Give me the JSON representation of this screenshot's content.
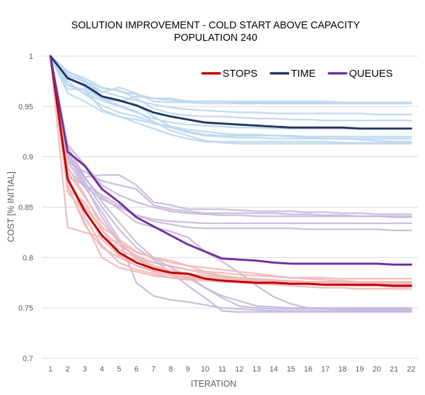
{
  "chart_data": {
    "type": "line",
    "title": "SOLUTION IMPROVEMENT - COLD START ABOVE CAPACITY",
    "subtitle": "POPULATION 240",
    "xlabel": "ITERATION",
    "ylabel": "COST [% INITIAL]",
    "x": [
      1,
      2,
      3,
      4,
      5,
      6,
      7,
      8,
      9,
      10,
      11,
      12,
      13,
      14,
      15,
      16,
      17,
      18,
      19,
      20,
      21,
      22
    ],
    "ylim": [
      0.7,
      1.0
    ],
    "yticks": [
      0.7,
      0.75,
      0.8,
      0.85,
      0.9,
      0.95,
      1
    ],
    "ytick_labels": [
      "0.7",
      "0.75",
      "0.8",
      "0.85",
      "0.9",
      "0.95",
      "1"
    ],
    "grid": true,
    "legend_position": "top-right",
    "series": [
      {
        "name": "STOPS",
        "color": "#c00000",
        "values": [
          1.0,
          0.878,
          0.846,
          0.822,
          0.805,
          0.795,
          0.789,
          0.785,
          0.784,
          0.779,
          0.777,
          0.776,
          0.775,
          0.775,
          0.774,
          0.774,
          0.773,
          0.773,
          0.773,
          0.773,
          0.772,
          0.772
        ]
      },
      {
        "name": "TIME",
        "color": "#1f3864",
        "values": [
          1.0,
          0.978,
          0.971,
          0.96,
          0.956,
          0.951,
          0.944,
          0.94,
          0.937,
          0.934,
          0.933,
          0.932,
          0.931,
          0.93,
          0.929,
          0.929,
          0.929,
          0.929,
          0.928,
          0.928,
          0.928,
          0.928
        ]
      },
      {
        "name": "QUEUES",
        "color": "#7030a0",
        "values": [
          1.0,
          0.905,
          0.891,
          0.868,
          0.855,
          0.84,
          0.831,
          0.822,
          0.813,
          0.806,
          0.799,
          0.798,
          0.797,
          0.795,
          0.794,
          0.794,
          0.794,
          0.794,
          0.794,
          0.794,
          0.793,
          0.793
        ]
      }
    ],
    "background_series": [
      {
        "group": "TIME",
        "color": "#bdd7ee",
        "values": [
          1.0,
          0.975,
          0.962,
          0.951,
          0.944,
          0.94,
          0.934,
          0.929,
          0.924,
          0.921,
          0.92,
          0.919,
          0.919,
          0.918,
          0.918,
          0.918,
          0.918,
          0.918,
          0.918,
          0.918,
          0.918,
          0.918
        ]
      },
      {
        "group": "TIME",
        "color": "#bdd7ee",
        "values": [
          1.0,
          0.982,
          0.974,
          0.965,
          0.96,
          0.956,
          0.952,
          0.949,
          0.947,
          0.946,
          0.945,
          0.944,
          0.944,
          0.943,
          0.943,
          0.943,
          0.943,
          0.943,
          0.943,
          0.942,
          0.942,
          0.942
        ]
      },
      {
        "group": "TIME",
        "color": "#bdd7ee",
        "values": [
          1.0,
          0.967,
          0.967,
          0.947,
          0.94,
          0.934,
          0.928,
          0.922,
          0.918,
          0.915,
          0.915,
          0.915,
          0.915,
          0.915,
          0.915,
          0.915,
          0.915,
          0.914,
          0.914,
          0.914,
          0.914,
          0.914
        ]
      },
      {
        "group": "TIME",
        "color": "#bdd7ee",
        "values": [
          1.0,
          0.984,
          0.978,
          0.969,
          0.965,
          0.962,
          0.958,
          0.956,
          0.955,
          0.955,
          0.955,
          0.954,
          0.954,
          0.954,
          0.954,
          0.954,
          0.954,
          0.953,
          0.953,
          0.953,
          0.953,
          0.953
        ]
      },
      {
        "group": "TIME",
        "color": "#bdd7ee",
        "values": [
          1.0,
          0.963,
          0.955,
          0.945,
          0.94,
          0.937,
          0.933,
          0.93,
          0.927,
          0.925,
          0.923,
          0.922,
          0.922,
          0.921,
          0.921,
          0.92,
          0.92,
          0.92,
          0.92,
          0.92,
          0.92,
          0.92
        ]
      },
      {
        "group": "TIME",
        "color": "#bdd7ee",
        "values": [
          1.0,
          0.98,
          0.975,
          0.968,
          0.966,
          0.958,
          0.948,
          0.943,
          0.941,
          0.94,
          0.94,
          0.939,
          0.938,
          0.938,
          0.937,
          0.937,
          0.936,
          0.936,
          0.936,
          0.936,
          0.936,
          0.936
        ]
      },
      {
        "group": "TIME",
        "color": "#bdd7ee",
        "values": [
          1.0,
          0.972,
          0.966,
          0.958,
          0.955,
          0.952,
          0.94,
          0.93,
          0.925,
          0.922,
          0.921,
          0.921,
          0.921,
          0.921,
          0.92,
          0.919,
          0.918,
          0.918,
          0.917,
          0.916,
          0.915,
          0.915
        ]
      },
      {
        "group": "TIME",
        "color": "#bdd7ee",
        "values": [
          1.0,
          0.977,
          0.972,
          0.964,
          0.969,
          0.963,
          0.955,
          0.954,
          0.954,
          0.953,
          0.953,
          0.953,
          0.953,
          0.953,
          0.953,
          0.953,
          0.953,
          0.953,
          0.953,
          0.953,
          0.953,
          0.953
        ]
      },
      {
        "group": "TIME",
        "color": "#bdd7ee",
        "values": [
          1.0,
          0.971,
          0.963,
          0.956,
          0.95,
          0.944,
          0.938,
          0.934,
          0.932,
          0.931,
          0.93,
          0.929,
          0.929,
          0.928,
          0.928,
          0.928,
          0.928,
          0.928,
          0.928,
          0.928,
          0.928,
          0.928
        ]
      },
      {
        "group": "TIME",
        "color": "#bdd7ee",
        "values": [
          1.0,
          0.985,
          0.976,
          0.96,
          0.955,
          0.96,
          0.958,
          0.958,
          0.955,
          0.955,
          0.955,
          0.955,
          0.955,
          0.955,
          0.955,
          0.955,
          0.955,
          0.954,
          0.954,
          0.954,
          0.954,
          0.954
        ]
      },
      {
        "group": "TIME",
        "color": "#bdd7ee",
        "values": [
          1.0,
          0.979,
          0.969,
          0.958,
          0.951,
          0.945,
          0.935,
          0.926,
          0.921,
          0.916,
          0.914,
          0.913,
          0.913,
          0.913,
          0.913,
          0.913,
          0.913,
          0.913,
          0.913,
          0.913,
          0.913,
          0.913
        ]
      },
      {
        "group": "QUEUES",
        "color": "#c9b8db",
        "values": [
          1.0,
          0.9,
          0.88,
          0.882,
          0.882,
          0.872,
          0.855,
          0.852,
          0.848,
          0.848,
          0.848,
          0.847,
          0.846,
          0.846,
          0.846,
          0.845,
          0.845,
          0.844,
          0.844,
          0.843,
          0.843,
          0.843
        ]
      },
      {
        "group": "QUEUES",
        "color": "#c9b8db",
        "values": [
          1.0,
          0.912,
          0.892,
          0.872,
          0.862,
          0.855,
          0.85,
          0.846,
          0.844,
          0.843,
          0.842,
          0.842,
          0.841,
          0.841,
          0.841,
          0.841,
          0.841,
          0.841,
          0.841,
          0.841,
          0.841,
          0.841
        ]
      },
      {
        "group": "QUEUES",
        "color": "#c9b8db",
        "values": [
          1.0,
          0.895,
          0.885,
          0.876,
          0.872,
          0.868,
          0.852,
          0.848,
          0.846,
          0.844,
          0.844,
          0.844,
          0.844,
          0.844,
          0.843,
          0.843,
          0.842,
          0.842,
          0.841,
          0.841,
          0.84,
          0.84
        ]
      },
      {
        "group": "QUEUES",
        "color": "#c9b8db",
        "values": [
          1.0,
          0.888,
          0.87,
          0.858,
          0.85,
          0.842,
          0.838,
          0.836,
          0.835,
          0.834,
          0.834,
          0.834,
          0.834,
          0.834,
          0.834,
          0.834,
          0.834,
          0.834,
          0.834,
          0.834,
          0.834,
          0.834
        ]
      },
      {
        "group": "QUEUES",
        "color": "#c9b8db",
        "values": [
          1.0,
          0.88,
          0.872,
          0.862,
          0.852,
          0.842,
          0.836,
          0.833,
          0.83,
          0.829,
          0.829,
          0.829,
          0.829,
          0.829,
          0.829,
          0.828,
          0.828,
          0.828,
          0.828,
          0.828,
          0.827,
          0.827
        ]
      },
      {
        "group": "QUEUES",
        "color": "#c9b8db",
        "values": [
          1.0,
          0.9,
          0.872,
          0.84,
          0.815,
          0.8,
          0.79,
          0.785,
          0.78,
          0.77,
          0.76,
          0.752,
          0.75,
          0.749,
          0.749,
          0.749,
          0.749,
          0.749,
          0.749,
          0.749,
          0.749,
          0.749
        ]
      },
      {
        "group": "QUEUES",
        "color": "#c9b8db",
        "values": [
          1.0,
          0.91,
          0.88,
          0.855,
          0.835,
          0.815,
          0.8,
          0.79,
          0.782,
          0.77,
          0.762,
          0.757,
          0.752,
          0.751,
          0.75,
          0.75,
          0.75,
          0.75,
          0.75,
          0.75,
          0.75,
          0.75
        ]
      },
      {
        "group": "QUEUES",
        "color": "#c9b8db",
        "values": [
          1.0,
          0.905,
          0.878,
          0.86,
          0.848,
          0.835,
          0.83,
          0.826,
          0.82,
          0.806,
          0.796,
          0.785,
          0.772,
          0.761,
          0.754,
          0.75,
          0.749,
          0.748,
          0.748,
          0.748,
          0.748,
          0.748
        ]
      },
      {
        "group": "QUEUES",
        "color": "#c9b8db",
        "values": [
          1.0,
          0.895,
          0.87,
          0.845,
          0.818,
          0.775,
          0.762,
          0.758,
          0.756,
          0.753,
          0.75,
          0.749,
          0.748,
          0.747,
          0.747,
          0.747,
          0.747,
          0.747,
          0.747,
          0.747,
          0.747,
          0.747
        ]
      },
      {
        "group": "QUEUES",
        "color": "#c9b8db",
        "values": [
          1.0,
          0.902,
          0.875,
          0.85,
          0.828,
          0.81,
          0.798,
          0.785,
          0.772,
          0.76,
          0.747,
          0.746,
          0.746,
          0.746,
          0.746,
          0.746,
          0.746,
          0.746,
          0.746,
          0.746,
          0.746,
          0.746
        ]
      },
      {
        "group": "STOPS",
        "color": "#f0b8b8",
        "values": [
          1.0,
          0.83,
          0.825,
          0.82,
          0.815,
          0.805,
          0.8,
          0.795,
          0.792,
          0.79,
          0.788,
          0.786,
          0.784,
          0.782,
          0.78,
          0.779,
          0.778,
          0.777,
          0.776,
          0.776,
          0.776,
          0.776
        ]
      },
      {
        "group": "STOPS",
        "color": "#f0b8b8",
        "values": [
          1.0,
          0.87,
          0.835,
          0.8,
          0.79,
          0.786,
          0.782,
          0.78,
          0.779,
          0.778,
          0.778,
          0.777,
          0.777,
          0.777,
          0.776,
          0.776,
          0.776,
          0.776,
          0.775,
          0.775,
          0.775,
          0.775
        ]
      },
      {
        "group": "STOPS",
        "color": "#f0b8b8",
        "values": [
          1.0,
          0.885,
          0.86,
          0.835,
          0.815,
          0.8,
          0.792,
          0.787,
          0.784,
          0.782,
          0.78,
          0.779,
          0.778,
          0.777,
          0.776,
          0.775,
          0.774,
          0.773,
          0.772,
          0.772,
          0.771,
          0.771
        ]
      },
      {
        "group": "STOPS",
        "color": "#f0b8b8",
        "values": [
          1.0,
          0.875,
          0.848,
          0.818,
          0.802,
          0.798,
          0.79,
          0.785,
          0.782,
          0.78,
          0.778,
          0.778,
          0.777,
          0.777,
          0.776,
          0.776,
          0.776,
          0.775,
          0.775,
          0.775,
          0.775,
          0.775
        ]
      },
      {
        "group": "STOPS",
        "color": "#f0b8b8",
        "values": [
          1.0,
          0.868,
          0.855,
          0.827,
          0.812,
          0.802,
          0.795,
          0.792,
          0.788,
          0.784,
          0.781,
          0.779,
          0.777,
          0.776,
          0.775,
          0.774,
          0.773,
          0.773,
          0.773,
          0.773,
          0.773,
          0.773
        ]
      },
      {
        "group": "STOPS",
        "color": "#f0b8b8",
        "values": [
          1.0,
          0.88,
          0.84,
          0.812,
          0.795,
          0.788,
          0.784,
          0.78,
          0.778,
          0.777,
          0.776,
          0.775,
          0.774,
          0.773,
          0.772,
          0.771,
          0.77,
          0.77,
          0.769,
          0.769,
          0.769,
          0.769
        ]
      },
      {
        "group": "STOPS",
        "color": "#f0b8b8",
        "values": [
          1.0,
          0.89,
          0.862,
          0.83,
          0.818,
          0.806,
          0.8,
          0.797,
          0.792,
          0.786,
          0.782,
          0.78,
          0.779,
          0.778,
          0.777,
          0.776,
          0.776,
          0.775,
          0.775,
          0.775,
          0.775,
          0.775
        ]
      },
      {
        "group": "STOPS",
        "color": "#f0b8b8",
        "values": [
          1.0,
          0.872,
          0.832,
          0.81,
          0.8,
          0.792,
          0.786,
          0.782,
          0.78,
          0.779,
          0.778,
          0.777,
          0.776,
          0.776,
          0.775,
          0.775,
          0.775,
          0.775,
          0.775,
          0.775,
          0.775,
          0.775
        ]
      },
      {
        "group": "STOPS",
        "color": "#f0b8b8",
        "values": [
          1.0,
          0.865,
          0.845,
          0.822,
          0.808,
          0.8,
          0.795,
          0.791,
          0.788,
          0.786,
          0.785,
          0.783,
          0.782,
          0.781,
          0.78,
          0.78,
          0.78,
          0.779,
          0.779,
          0.779,
          0.779,
          0.779
        ]
      },
      {
        "group": "STOPS",
        "color": "#f0b8b8",
        "values": [
          1.0,
          0.878,
          0.85,
          0.828,
          0.803,
          0.792,
          0.787,
          0.784,
          0.781,
          0.779,
          0.778,
          0.777,
          0.776,
          0.775,
          0.775,
          0.774,
          0.774,
          0.774,
          0.774,
          0.774,
          0.774,
          0.774
        ]
      }
    ]
  }
}
